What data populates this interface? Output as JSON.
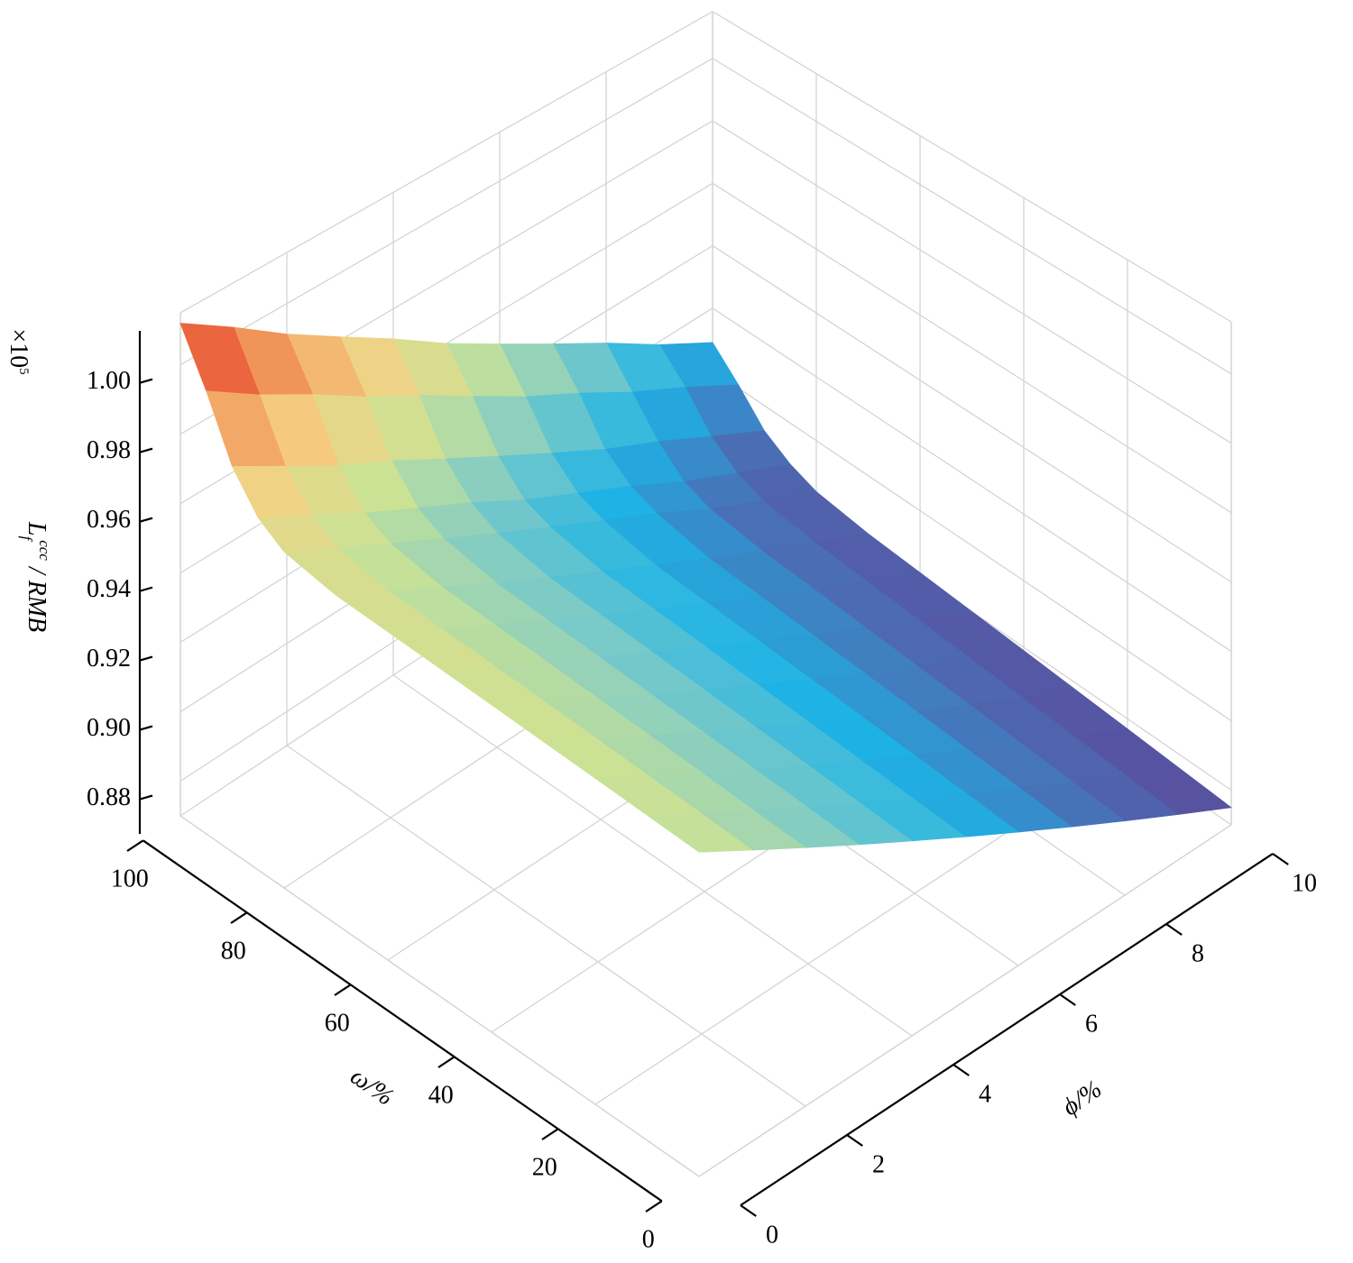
{
  "chart_data": {
    "type": "surface",
    "xlabel": "ϕ/%",
    "ylabel": "ω/%",
    "zlabel": {
      "symbol": "L",
      "sub": "f",
      "sup": "ccc",
      "unit": " / RMB"
    },
    "zscale": {
      "base": "×10",
      "exponent": "5"
    },
    "x": [
      0,
      1,
      2,
      3,
      4,
      5,
      6,
      7,
      8,
      9,
      10
    ],
    "y": [
      0,
      10,
      20,
      30,
      40,
      50,
      60,
      70,
      80,
      85,
      90,
      95,
      100
    ],
    "values": [
      [
        0.955,
        0.947,
        0.939,
        0.931,
        0.923,
        0.915,
        0.907,
        0.899,
        0.891,
        0.883,
        0.875
      ],
      [
        0.956,
        0.948,
        0.94,
        0.932,
        0.924,
        0.916,
        0.908,
        0.9,
        0.892,
        0.884,
        0.876
      ],
      [
        0.957,
        0.949,
        0.941,
        0.933,
        0.925,
        0.917,
        0.909,
        0.901,
        0.893,
        0.885,
        0.877
      ],
      [
        0.958,
        0.95,
        0.942,
        0.934,
        0.926,
        0.918,
        0.91,
        0.902,
        0.894,
        0.886,
        0.878
      ],
      [
        0.959,
        0.951,
        0.943,
        0.935,
        0.927,
        0.919,
        0.911,
        0.903,
        0.895,
        0.887,
        0.879
      ],
      [
        0.96,
        0.952,
        0.944,
        0.936,
        0.928,
        0.92,
        0.912,
        0.904,
        0.896,
        0.888,
        0.88
      ],
      [
        0.961,
        0.953,
        0.945,
        0.937,
        0.929,
        0.921,
        0.913,
        0.905,
        0.897,
        0.889,
        0.881
      ],
      [
        0.962,
        0.954,
        0.946,
        0.938,
        0.93,
        0.922,
        0.914,
        0.906,
        0.898,
        0.89,
        0.882
      ],
      [
        0.965,
        0.957,
        0.949,
        0.941,
        0.933,
        0.925,
        0.917,
        0.909,
        0.9,
        0.892,
        0.884
      ],
      [
        0.97,
        0.962,
        0.953,
        0.945,
        0.937,
        0.928,
        0.92,
        0.912,
        0.903,
        0.895,
        0.887
      ],
      [
        0.98,
        0.971,
        0.962,
        0.954,
        0.945,
        0.936,
        0.927,
        0.918,
        0.91,
        0.901,
        0.892
      ],
      [
        0.997,
        0.987,
        0.978,
        0.968,
        0.959,
        0.949,
        0.939,
        0.93,
        0.92,
        0.911,
        0.901
      ],
      [
        1.012,
        1.002,
        0.991,
        0.981,
        0.971,
        0.96,
        0.95,
        0.94,
        0.93,
        0.919,
        0.909
      ]
    ],
    "colormap": [
      "#5b4a9b",
      "#4a6fb5",
      "#1db3e6",
      "#7fcbc6",
      "#cbe294",
      "#f5d083",
      "#f08a50",
      "#e32421"
    ],
    "xlim": [
      0,
      10
    ],
    "ylim": [
      0,
      100
    ],
    "zlim": [
      0.87,
      1.015
    ],
    "xticks": [
      0,
      2,
      4,
      6,
      8,
      10
    ],
    "yticks": [
      0,
      20,
      40,
      60,
      80,
      100
    ],
    "zticks": [
      0.88,
      {
        "value": 0.9,
        "label": "0.90"
      },
      0.92,
      0.94,
      0.96,
      0.98,
      {
        "value": 1,
        "label": "1.00"
      }
    ],
    "grid": true
  }
}
